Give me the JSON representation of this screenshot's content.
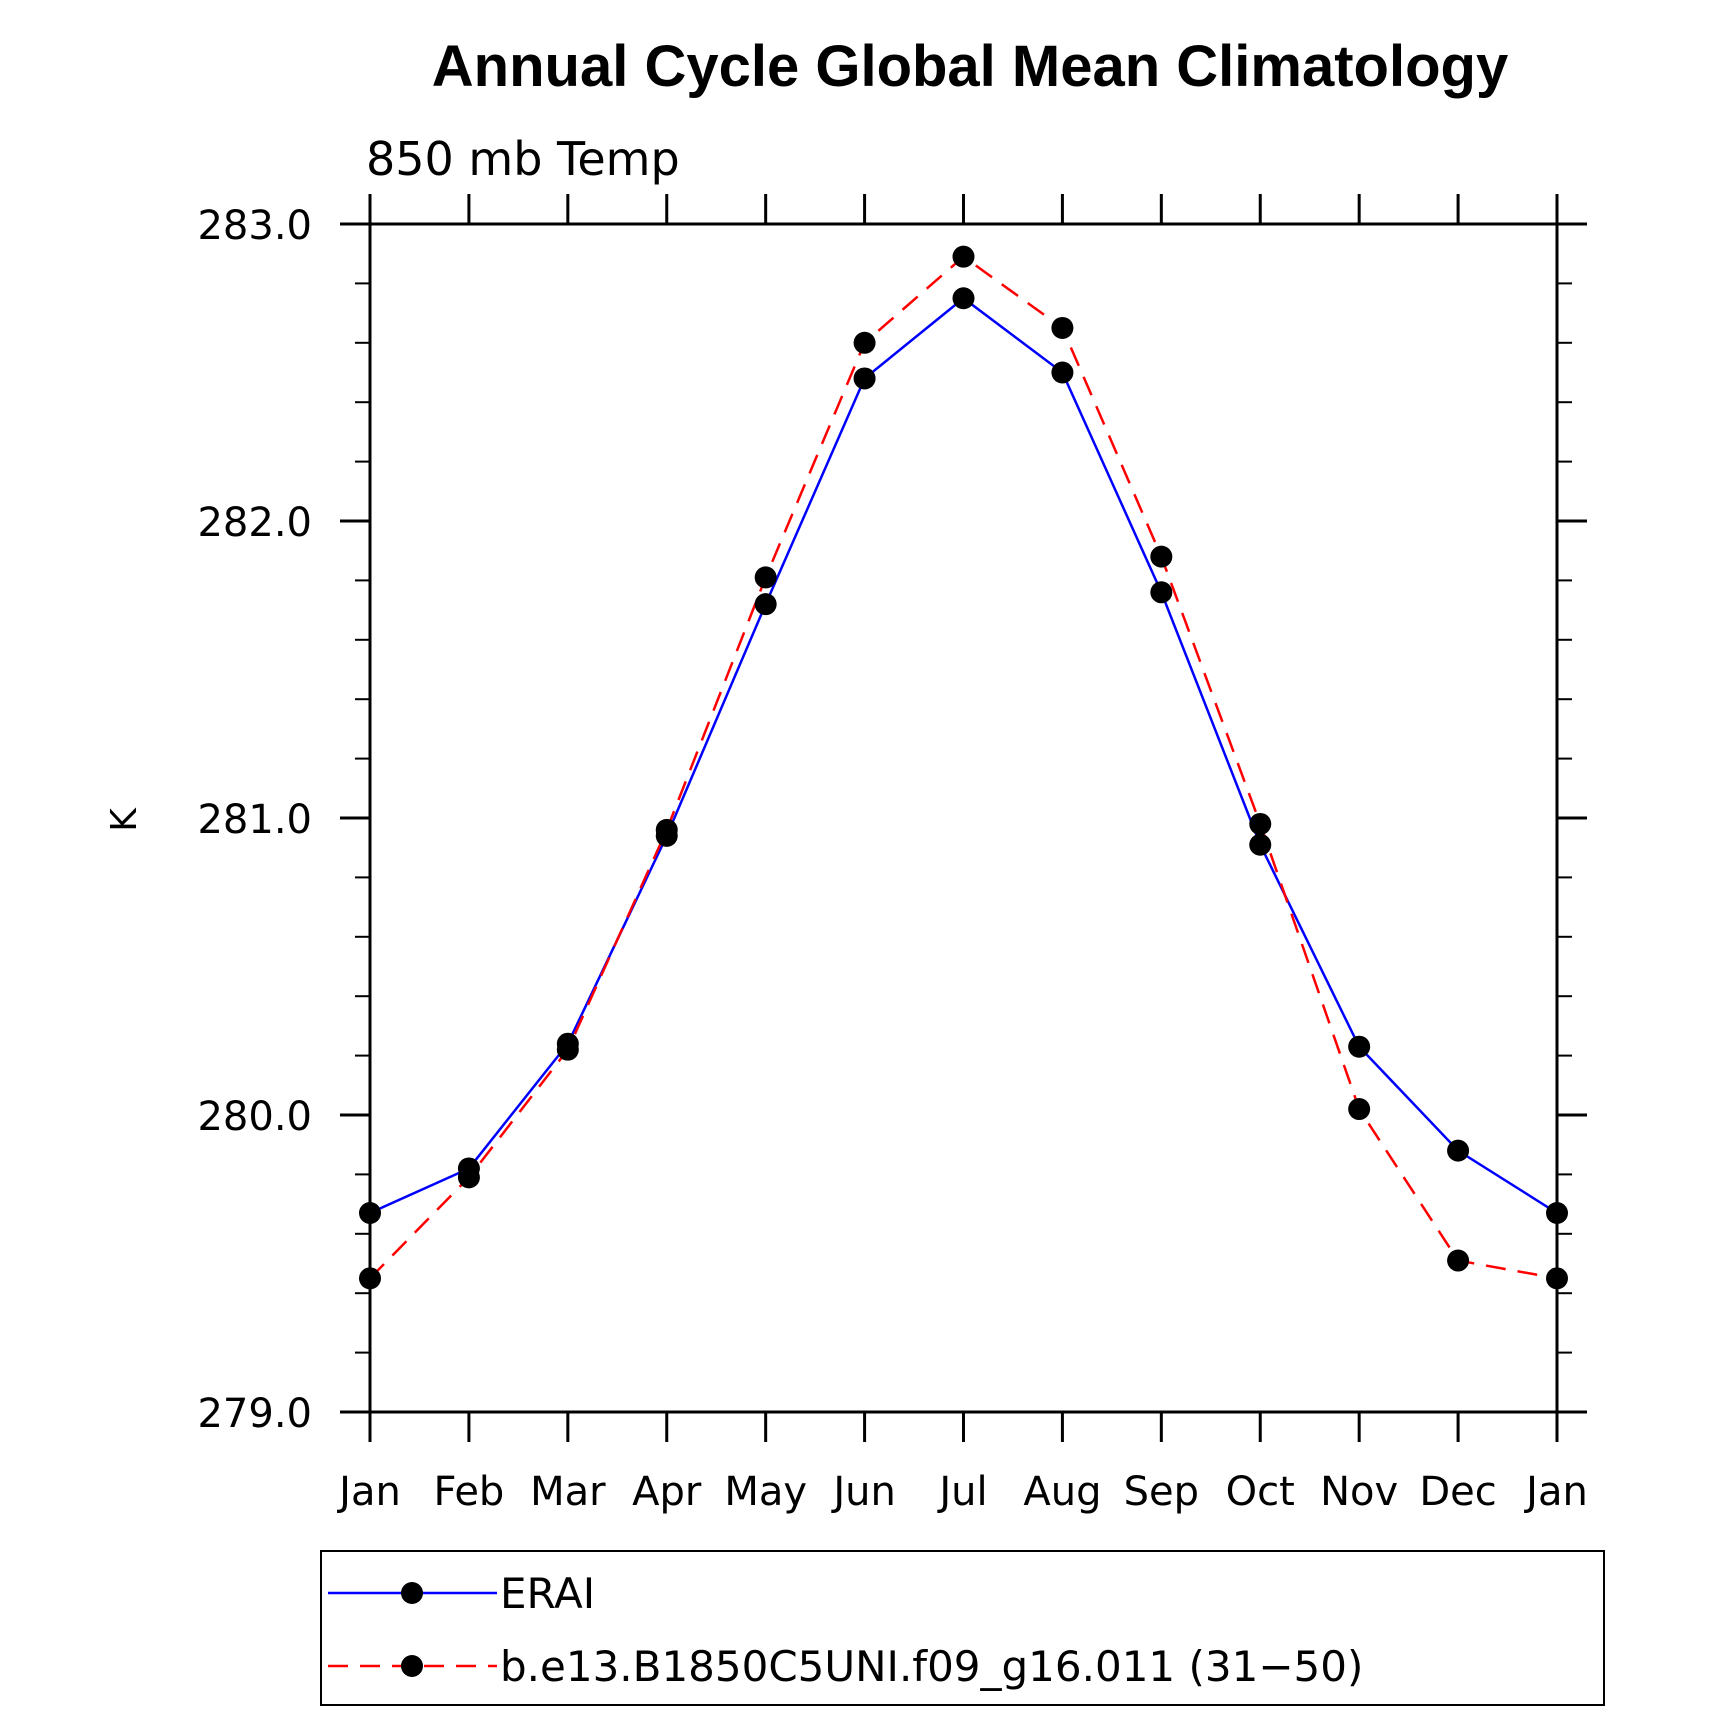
{
  "chart_data": {
    "type": "line",
    "title": "Annual Cycle Global Mean Climatology",
    "subtitle": "850 mb Temp",
    "xlabel": "",
    "ylabel": "K",
    "categories": [
      "Jan",
      "Feb",
      "Mar",
      "Apr",
      "May",
      "Jun",
      "Jul",
      "Aug",
      "Sep",
      "Oct",
      "Nov",
      "Dec",
      "Jan"
    ],
    "ylim": [
      279.0,
      283.0
    ],
    "yticks": [
      "279.0",
      "280.0",
      "281.0",
      "282.0",
      "283.0"
    ],
    "grid": false,
    "legend_position": "bottom",
    "series": [
      {
        "name": "ERAI",
        "color": "#0000ff",
        "style": "solid",
        "marker": "filled-circle",
        "values": [
          279.67,
          279.82,
          280.24,
          280.94,
          281.72,
          282.48,
          282.75,
          282.5,
          281.76,
          280.91,
          280.23,
          279.88,
          279.67
        ]
      },
      {
        "name": "b.e13.B1850C5UNI.f09_g16.011 (31−50)",
        "color": "#ff0000",
        "style": "dashed",
        "marker": "filled-circle",
        "values": [
          279.45,
          279.79,
          280.22,
          280.96,
          281.81,
          282.6,
          282.89,
          282.65,
          281.88,
          280.98,
          280.02,
          279.51,
          279.45
        ]
      }
    ]
  }
}
